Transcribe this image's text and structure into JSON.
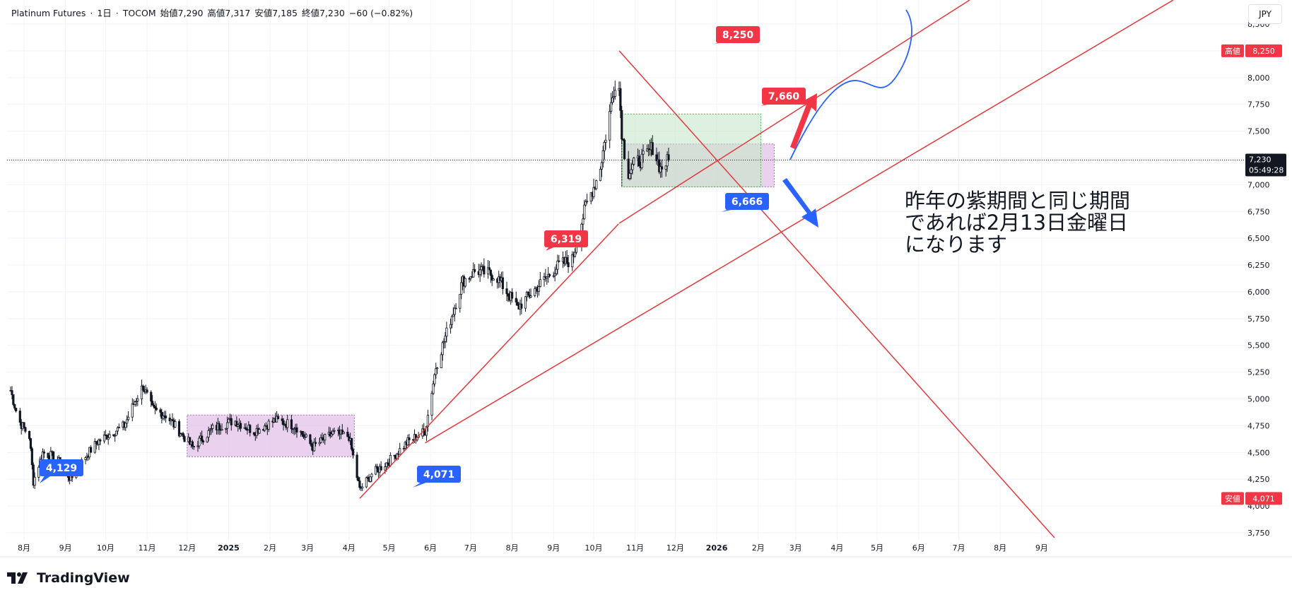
{
  "header": {
    "symbol": "Platinum Futures",
    "interval": "1日",
    "exchange": "TOCOM",
    "open": "始値7,290",
    "high": "高値7,317",
    "low": "安値7,185",
    "close": "終値7,230",
    "change": "−60 (−0.82%)"
  },
  "currency": "JPY",
  "brand": "TradingView",
  "colors": {
    "up": "#131722",
    "red_line": "#e5383b",
    "red_label": "#f23645",
    "blue_label": "#2962ff",
    "blue_curve": "#2962ff",
    "purple_box": "#e1bee7",
    "green_box": "#c8e6c9",
    "grid": "#f0f3fa"
  },
  "chart_data": {
    "type": "candlestick",
    "ylim": [
      3600,
      8700
    ],
    "y_ticks": [
      "8,500",
      "8,250",
      "8,000",
      "7,750",
      "7,500",
      "7,250",
      "7,000",
      "6,750",
      "6,500",
      "6,250",
      "6,000",
      "5,750",
      "5,500",
      "5,250",
      "5,000",
      "4,750",
      "4,500",
      "4,250",
      "4,000",
      "3,750"
    ],
    "x_labels": [
      "8月",
      "9月",
      "10月",
      "11月",
      "12月",
      "2025",
      "2月",
      "3月",
      "4月",
      "5月",
      "6月",
      "7月",
      "8月",
      "9月",
      "10月",
      "11月",
      "12月",
      "2026",
      "2月",
      "3月",
      "4月",
      "5月",
      "6月",
      "7月",
      "8月",
      "9月"
    ],
    "series": [
      {
        "name": "Platinum Futures",
        "anchors": [
          [
            "2024-07-22",
            5080
          ],
          [
            "2024-07-28",
            4800
          ],
          [
            "2024-08-05",
            4650
          ],
          [
            "2024-08-08",
            4230
          ],
          [
            "2024-08-15",
            4500
          ],
          [
            "2024-08-25",
            4450
          ],
          [
            "2024-09-05",
            4250
          ],
          [
            "2024-09-15",
            4450
          ],
          [
            "2024-09-25",
            4600
          ],
          [
            "2024-10-05",
            4680
          ],
          [
            "2024-10-15",
            4750
          ],
          [
            "2024-10-23",
            4980
          ],
          [
            "2024-10-29",
            5120
          ],
          [
            "2024-11-05",
            4900
          ],
          [
            "2024-11-15",
            4850
          ],
          [
            "2024-11-25",
            4700
          ],
          [
            "2024-12-05",
            4550
          ],
          [
            "2024-12-20",
            4720
          ],
          [
            "2025-01-05",
            4800
          ],
          [
            "2025-01-20",
            4700
          ],
          [
            "2025-02-05",
            4800
          ],
          [
            "2025-02-20",
            4750
          ],
          [
            "2025-03-05",
            4550
          ],
          [
            "2025-03-20",
            4680
          ],
          [
            "2025-04-01",
            4650
          ],
          [
            "2025-04-05",
            4400
          ],
          [
            "2025-04-09",
            4150
          ],
          [
            "2025-04-18",
            4300
          ],
          [
            "2025-05-01",
            4420
          ],
          [
            "2025-05-15",
            4600
          ],
          [
            "2025-05-28",
            4700
          ],
          [
            "2025-06-05",
            5300
          ],
          [
            "2025-06-15",
            5700
          ],
          [
            "2025-06-25",
            6100
          ],
          [
            "2025-07-05",
            6200
          ],
          [
            "2025-07-20",
            6150
          ],
          [
            "2025-08-05",
            5850
          ],
          [
            "2025-08-20",
            6050
          ],
          [
            "2025-09-05",
            6250
          ],
          [
            "2025-09-15",
            6300
          ],
          [
            "2025-09-25",
            6800
          ],
          [
            "2025-10-05",
            7100
          ],
          [
            "2025-10-12",
            7600
          ],
          [
            "2025-10-19",
            8100
          ],
          [
            "2025-10-22",
            7500
          ],
          [
            "2025-10-26",
            7100
          ],
          [
            "2025-11-01",
            7200
          ],
          [
            "2025-11-08",
            7250
          ],
          [
            "2025-11-14",
            7350
          ],
          [
            "2025-11-20",
            7150
          ],
          [
            "2025-11-26",
            7230
          ]
        ]
      }
    ],
    "current_price": "7,230",
    "countdown": "05:49:28",
    "high_label": {
      "title": "高値",
      "value": "8,250"
    },
    "low_label": {
      "title": "安値",
      "value": "4,071"
    },
    "annotations": [
      {
        "text": "8,250",
        "kind": "red",
        "date": "2025-10-19",
        "price": 8250
      },
      {
        "text": "7,660",
        "kind": "red",
        "date": "2025-11-13",
        "price": 7660
      },
      {
        "text": "6,319",
        "kind": "red",
        "date": "2025-07-01",
        "price": 6319
      },
      {
        "text": "6,666",
        "kind": "blue",
        "date": "2025-10-23",
        "price": 6666
      },
      {
        "text": "4,129",
        "kind": "blue",
        "date": "2024-08-08",
        "price": 4129
      },
      {
        "text": "4,071",
        "kind": "blue",
        "date": "2025-04-09",
        "price": 4071
      }
    ],
    "note_lines": [
      "昨年の紫期間と同じ期間",
      "であれば2月13日金曜日",
      "になります"
    ]
  }
}
